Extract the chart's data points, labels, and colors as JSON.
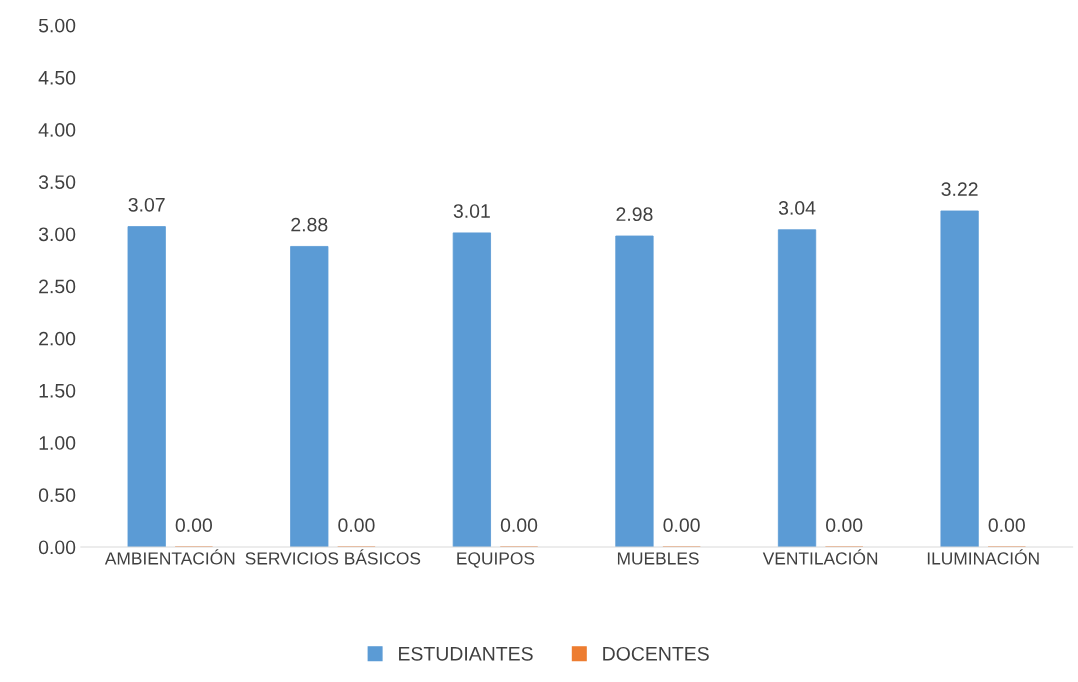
{
  "chart_data": {
    "type": "bar",
    "categories": [
      "AMBIENTACIÓN",
      "SERVICIOS BÁSICOS",
      "EQUIPOS",
      "MUEBLES",
      "VENTILACIÓN",
      "ILUMINACIÓN"
    ],
    "series": [
      {
        "name": "ESTUDIANTES",
        "color": "#5b9bd5",
        "values": [
          3.07,
          2.88,
          3.01,
          2.98,
          3.04,
          3.22
        ],
        "value_labels": [
          "3.07",
          "2.88",
          "3.01",
          "2.98",
          "3.04",
          "3.22"
        ]
      },
      {
        "name": "DOCENTES",
        "color": "#ed7d31",
        "values": [
          0,
          0,
          0,
          0,
          0,
          0
        ],
        "value_labels": [
          "0.00",
          "0.00",
          "0.00",
          "0.00",
          "0.00",
          "0.00"
        ]
      }
    ],
    "ylim": [
      0,
      5
    ],
    "yticks": [
      {
        "value": 0,
        "label": "0.00"
      },
      {
        "value": 0.5,
        "label": "0.50"
      },
      {
        "value": 1,
        "label": "1.00"
      },
      {
        "value": 1.5,
        "label": "1.50"
      },
      {
        "value": 2,
        "label": "2.00"
      },
      {
        "value": 2.5,
        "label": "2.50"
      },
      {
        "value": 3,
        "label": "3.00"
      },
      {
        "value": 3.5,
        "label": "3.50"
      },
      {
        "value": 4,
        "label": "4.00"
      },
      {
        "value": 4.5,
        "label": "4.50"
      },
      {
        "value": 5,
        "label": "5.00"
      }
    ],
    "grid": false,
    "legend": "bottom"
  }
}
